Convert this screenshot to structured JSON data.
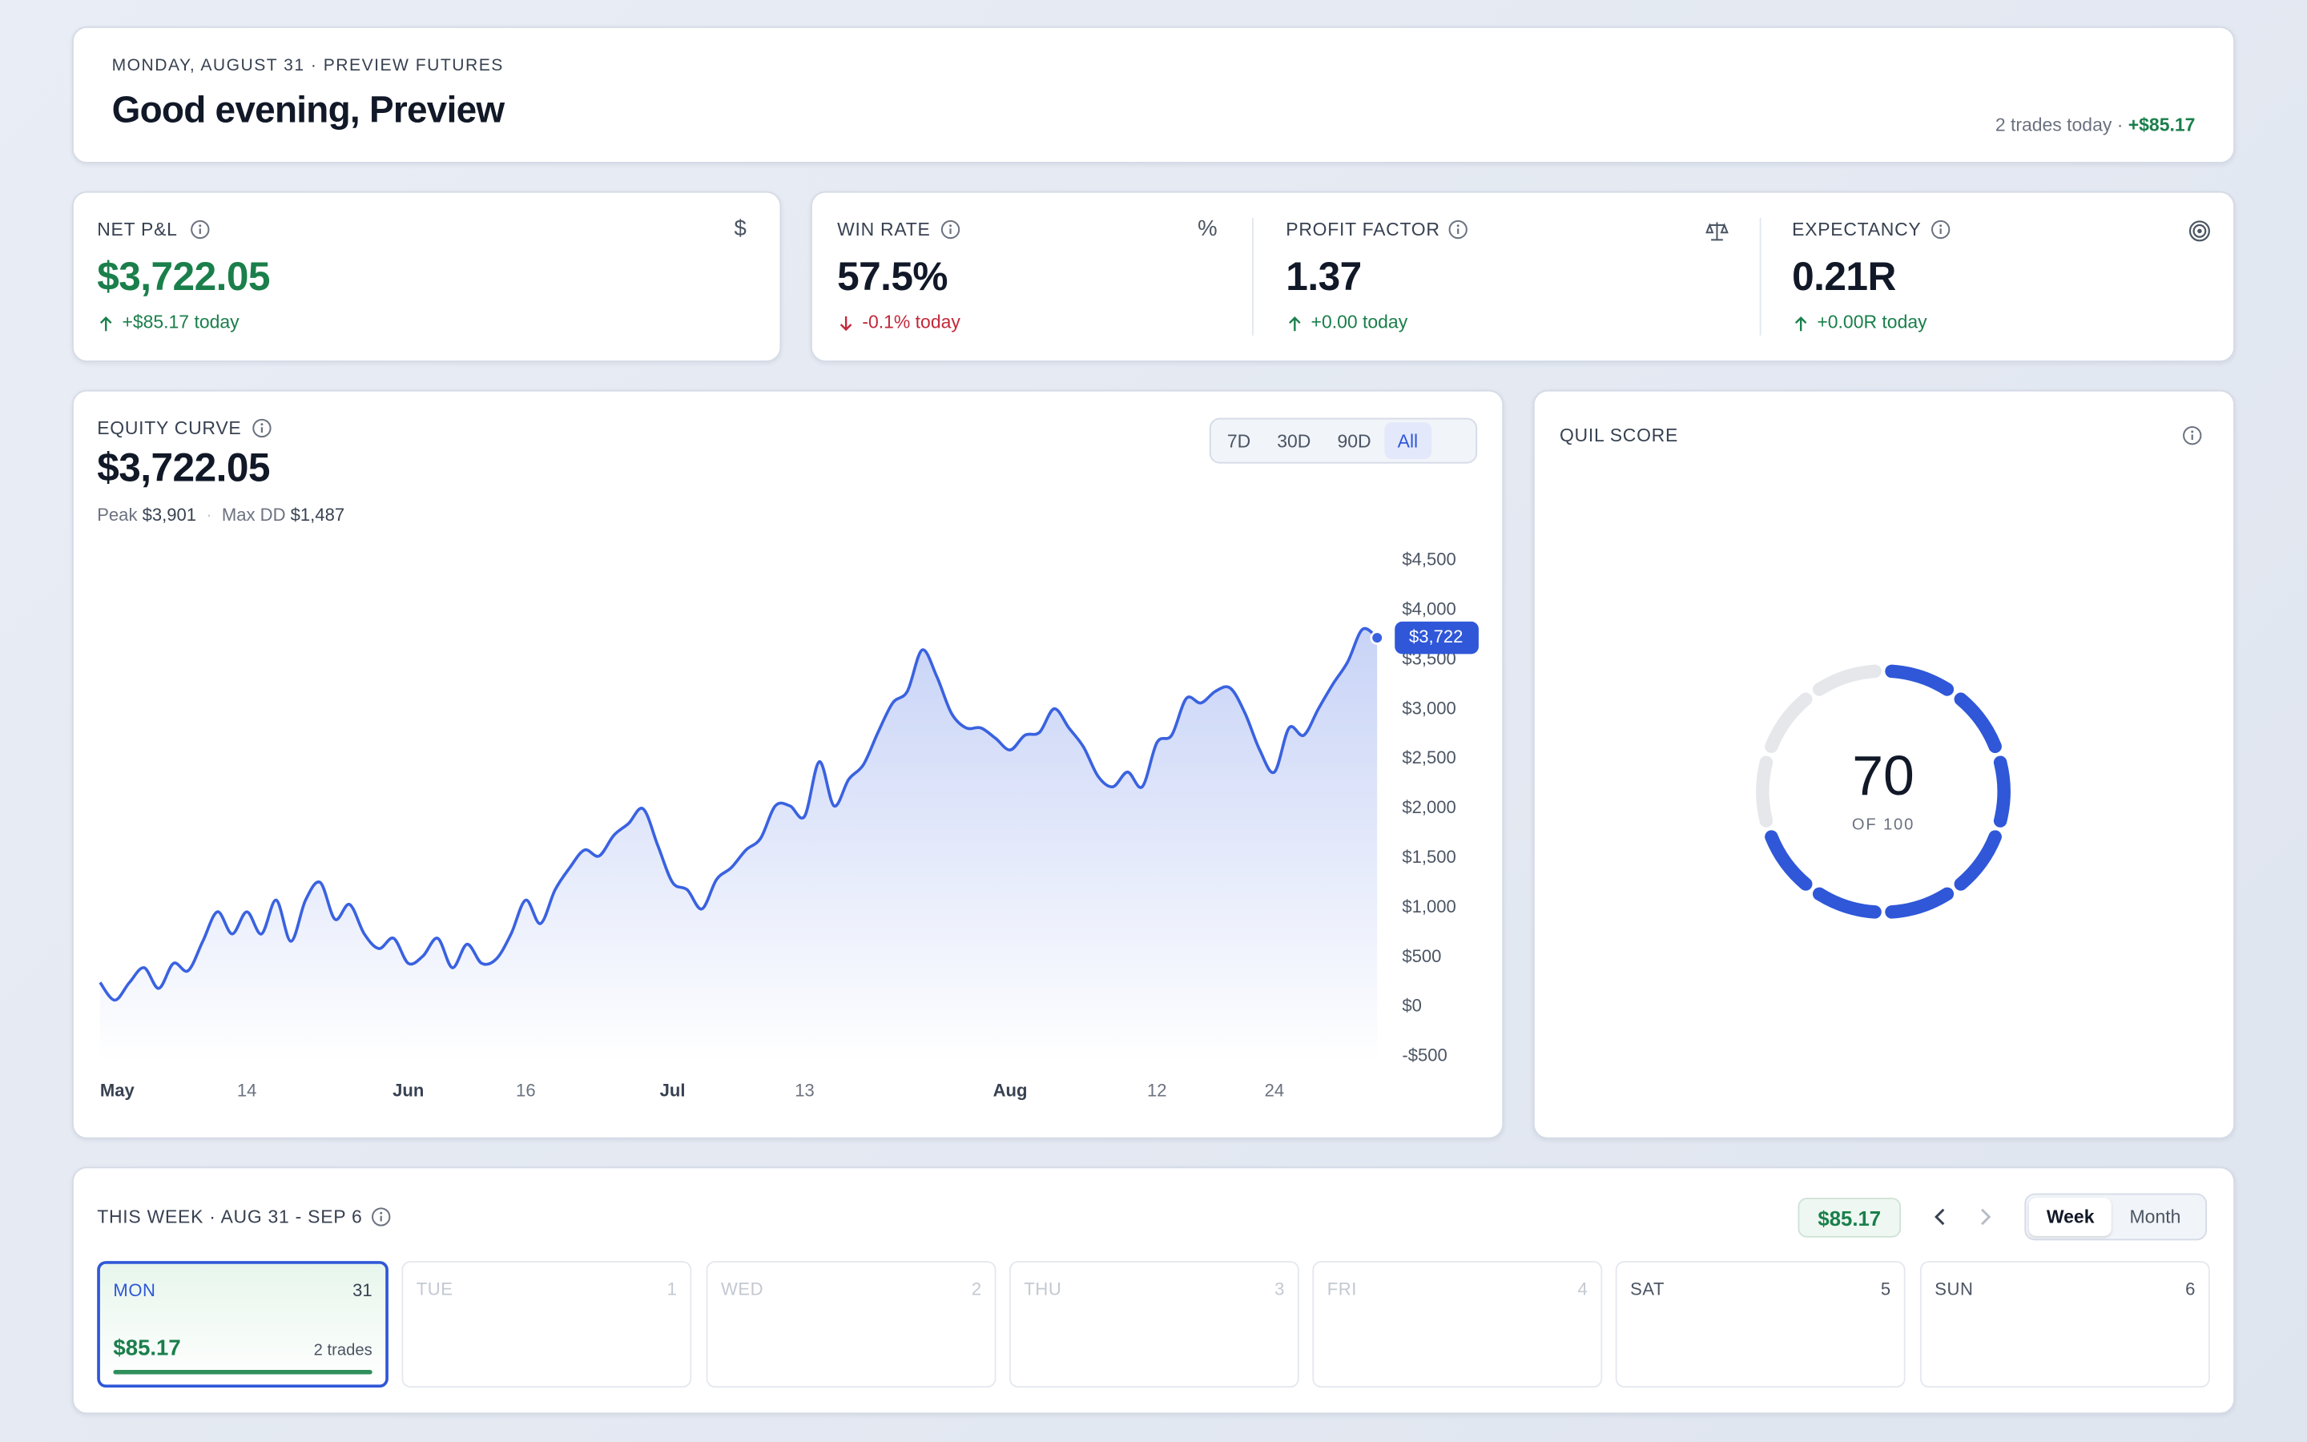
{
  "header": {
    "eyebrow": "MONDAY, AUGUST 31 · PREVIEW FUTURES",
    "title": "Good evening, Preview",
    "summary": "2 trades today ·",
    "summary_amount": "+$85.17"
  },
  "stats": [
    {
      "label": "NET P&L",
      "value": "$3,722.05",
      "change": "+$85.17 today",
      "direction": "up",
      "icon": "$"
    },
    {
      "label": "WIN RATE",
      "value": "57.5%",
      "change": "-0.1% today",
      "direction": "down",
      "icon": "%"
    },
    {
      "label": "PROFIT FACTOR",
      "value": "1.37",
      "change": "+0.00 today",
      "direction": "up"
    },
    {
      "label": "EXPECTANCY",
      "value": "0.21R",
      "change": "+0.00R today",
      "direction": "up"
    }
  ],
  "equity": {
    "label": "EQUITY CURVE",
    "value": "$3,722.05",
    "peak_label": "Peak",
    "peak": "$3,901",
    "dd_label": "Max DD",
    "dd": "$1,487",
    "ranges": [
      "7D",
      "30D",
      "90D",
      "All"
    ],
    "active_range": 3
  },
  "chart_data": {
    "type": "line",
    "color": "#3a62e0",
    "categories": [
      "May",
      null,
      null,
      null,
      null,
      null,
      null,
      null,
      null,
      null,
      "14",
      null,
      null,
      null,
      null,
      null,
      null,
      null,
      null,
      null,
      null,
      "Jun",
      null,
      null,
      null,
      null,
      null,
      null,
      null,
      "16",
      null,
      null,
      null,
      null,
      null,
      null,
      null,
      null,
      null,
      "Jul",
      null,
      null,
      null,
      null,
      null,
      null,
      null,
      null,
      "13",
      null,
      null,
      null,
      null,
      null,
      null,
      null,
      null,
      null,
      null,
      null,
      null,
      null,
      "Aug",
      null,
      null,
      null,
      null,
      null,
      null,
      null,
      null,
      null,
      "12",
      null,
      null,
      null,
      null,
      null,
      null,
      null,
      "24",
      null,
      null,
      null,
      null,
      null,
      null,
      null
    ],
    "values": [
      246,
      68,
      246,
      395,
      187,
      439,
      365,
      662,
      959,
      736,
      959,
      736,
      1077,
      662,
      1077,
      1255,
      884,
      1033,
      736,
      588,
      692,
      439,
      513,
      692,
      395,
      632,
      439,
      484,
      736,
      1077,
      840,
      1181,
      1404,
      1582,
      1522,
      1730,
      1849,
      1997,
      1626,
      1255,
      1181,
      988,
      1285,
      1404,
      1582,
      1700,
      2027,
      2027,
      1923,
      2472,
      2027,
      2294,
      2442,
      2769,
      3065,
      3184,
      3599,
      3332,
      2961,
      2813,
      2813,
      2709,
      2591,
      2739,
      2769,
      3006,
      2813,
      2620,
      2323,
      2220,
      2368,
      2220,
      2665,
      2739,
      3110,
      3065,
      3184,
      3214,
      2961,
      2591,
      2368,
      2813,
      2739,
      3006,
      3258,
      3481,
      3807,
      3722
    ],
    "value_labels": [
      null,
      null,
      null,
      null,
      null,
      null,
      null,
      null,
      null,
      null,
      null,
      null,
      null,
      null,
      null,
      null,
      null,
      null,
      null,
      null,
      null,
      null,
      null,
      null,
      null,
      null,
      null,
      null,
      null,
      null,
      null,
      null,
      null,
      null,
      null,
      null,
      null,
      null,
      null,
      null,
      null,
      null,
      null,
      null,
      null,
      null,
      null,
      null,
      null,
      null,
      null,
      null,
      null,
      null,
      null,
      null,
      null,
      null,
      null,
      null,
      null,
      null,
      null,
      null,
      null,
      null,
      null,
      null,
      null,
      null,
      null,
      null,
      null,
      null,
      null,
      null,
      null,
      null,
      null,
      null,
      null,
      null,
      null,
      null,
      null,
      null,
      null,
      "$3,722"
    ],
    "ylim": [
      -500,
      4500
    ],
    "yticks": [
      {
        "value": 4500,
        "label": "$4,500"
      },
      {
        "value": 4000,
        "label": "$4,000"
      },
      {
        "value": 3500,
        "label": "$3,500"
      },
      {
        "value": 3000,
        "label": "$3,000"
      },
      {
        "value": 2500,
        "label": "$2,500"
      },
      {
        "value": 2000,
        "label": "$2,000"
      },
      {
        "value": 1500,
        "label": "$1,500"
      },
      {
        "value": 1000,
        "label": "$1,000"
      },
      {
        "value": 500,
        "label": "$500"
      },
      {
        "value": 0,
        "label": "$0"
      },
      {
        "value": -500,
        "label": "-$500"
      }
    ],
    "grid": false
  },
  "score": {
    "title": "QUIL SCORE",
    "value": 70,
    "max": 100,
    "caption": "OF 100"
  },
  "week": {
    "title": "THIS WEEK · AUG 31 - SEP 6",
    "total": "$85.17",
    "views": [
      "Week",
      "Month"
    ],
    "active_view": 0,
    "days": [
      {
        "name": "MON",
        "date": "31",
        "amount": "$85.17",
        "trades": "2 trades",
        "active": true
      },
      {
        "name": "TUE",
        "date": "1",
        "muted": true
      },
      {
        "name": "WED",
        "date": "2",
        "muted": true
      },
      {
        "name": "THU",
        "date": "3",
        "muted": true
      },
      {
        "name": "FRI",
        "date": "4",
        "muted": true
      },
      {
        "name": "SAT",
        "date": "5"
      },
      {
        "name": "SUN",
        "date": "6"
      }
    ]
  }
}
